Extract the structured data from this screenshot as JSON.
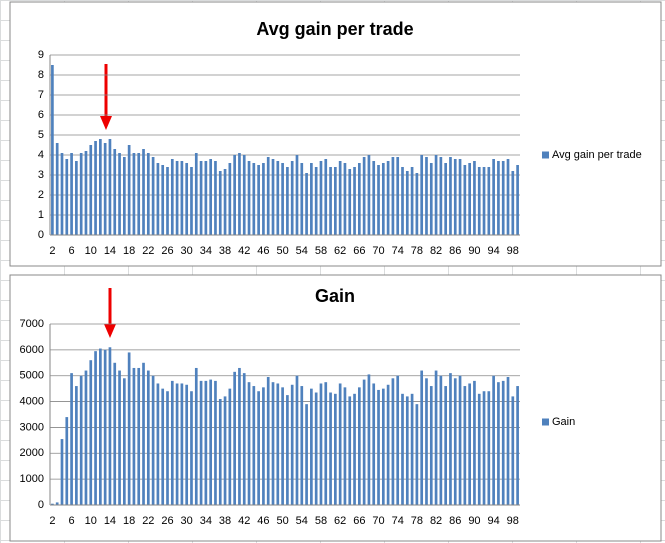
{
  "chart_data": [
    {
      "type": "bar",
      "title": "Avg gain per trade",
      "categories": [
        2,
        null,
        null,
        null,
        6,
        null,
        null,
        null,
        10,
        null,
        null,
        null,
        14,
        null,
        null,
        null,
        18,
        null,
        null,
        null,
        22,
        null,
        null,
        null,
        26,
        null,
        null,
        null,
        30,
        null,
        null,
        null,
        34,
        null,
        null,
        null,
        38,
        null,
        null,
        null,
        42,
        null,
        null,
        null,
        46,
        null,
        null,
        null,
        50,
        null,
        null,
        null,
        54,
        null,
        null,
        null,
        58,
        null,
        null,
        null,
        62,
        null,
        null,
        null,
        66,
        null,
        null,
        null,
        70,
        null,
        null,
        null,
        74,
        null,
        null,
        null,
        78,
        null,
        null,
        null,
        82,
        null,
        null,
        null,
        86,
        null,
        null,
        null,
        90,
        null,
        null,
        null,
        94,
        null,
        null,
        null,
        98,
        null
      ],
      "series": [
        {
          "name": "Avg gain per trade",
          "color": "#4f81bd",
          "values": [
            8.5,
            4.6,
            4.1,
            3.8,
            4.1,
            3.7,
            4.1,
            4.2,
            4.5,
            4.7,
            4.8,
            4.6,
            4.8,
            4.3,
            4.1,
            3.9,
            4.5,
            4.1,
            4.1,
            4.3,
            4.1,
            3.9,
            3.6,
            3.5,
            3.4,
            3.8,
            3.7,
            3.7,
            3.6,
            3.4,
            4.1,
            3.7,
            3.7,
            3.8,
            3.7,
            3.2,
            3.3,
            3.6,
            4.0,
            4.1,
            4.0,
            3.7,
            3.6,
            3.5,
            3.6,
            3.9,
            3.8,
            3.7,
            3.6,
            3.4,
            3.7,
            4.0,
            3.6,
            3.1,
            3.6,
            3.4,
            3.7,
            3.8,
            3.4,
            3.4,
            3.7,
            3.6,
            3.3,
            3.4,
            3.6,
            3.9,
            4.0,
            3.7,
            3.5,
            3.6,
            3.7,
            3.9,
            3.9,
            3.4,
            3.2,
            3.4,
            3.1,
            4.0,
            3.9,
            3.6,
            4.0,
            3.9,
            3.6,
            3.9,
            3.8,
            3.8,
            3.5,
            3.6,
            3.7,
            3.4,
            3.4,
            3.4,
            3.8,
            3.7,
            3.7,
            3.8,
            3.2,
            3.5
          ]
        }
      ],
      "ylim": [
        0,
        9
      ],
      "yticks": [
        0,
        1,
        2,
        3,
        4,
        5,
        6,
        7,
        8,
        9
      ],
      "grid": true,
      "legend": "right"
    },
    {
      "type": "bar",
      "title": "Gain",
      "categories": [
        2,
        null,
        null,
        null,
        6,
        null,
        null,
        null,
        10,
        null,
        null,
        null,
        14,
        null,
        null,
        null,
        18,
        null,
        null,
        null,
        22,
        null,
        null,
        null,
        26,
        null,
        null,
        null,
        30,
        null,
        null,
        null,
        34,
        null,
        null,
        null,
        38,
        null,
        null,
        null,
        42,
        null,
        null,
        null,
        46,
        null,
        null,
        null,
        50,
        null,
        null,
        null,
        54,
        null,
        null,
        null,
        58,
        null,
        null,
        null,
        62,
        null,
        null,
        null,
        66,
        null,
        null,
        null,
        70,
        null,
        null,
        null,
        74,
        null,
        null,
        null,
        78,
        null,
        null,
        null,
        82,
        null,
        null,
        null,
        86,
        null,
        null,
        null,
        90,
        null,
        null,
        null,
        94,
        null,
        null,
        null,
        98,
        null
      ],
      "series": [
        {
          "name": "Gain",
          "color": "#4f81bd",
          "values": [
            50,
            100,
            2550,
            3400,
            5100,
            4600,
            5000,
            5200,
            5600,
            5950,
            6050,
            6000,
            6100,
            5500,
            5200,
            4900,
            5900,
            5300,
            5300,
            5500,
            5200,
            5000,
            4700,
            4500,
            4400,
            4800,
            4700,
            4700,
            4650,
            4400,
            5300,
            4800,
            4800,
            4850,
            4800,
            4100,
            4200,
            4500,
            5150,
            5300,
            5100,
            4750,
            4600,
            4400,
            4550,
            4950,
            4750,
            4700,
            4550,
            4250,
            4650,
            5000,
            4600,
            3900,
            4500,
            4350,
            4700,
            4750,
            4350,
            4300,
            4700,
            4550,
            4200,
            4300,
            4550,
            4850,
            5050,
            4700,
            4450,
            4500,
            4650,
            4900,
            5000,
            4300,
            4200,
            4300,
            3900,
            5200,
            4900,
            4600,
            5200,
            5000,
            4600,
            5100,
            4900,
            5000,
            4600,
            4700,
            4800,
            4300,
            4400,
            4400,
            5000,
            4750,
            4800,
            4950,
            4200,
            4600
          ]
        }
      ],
      "ylim": [
        0,
        7000
      ],
      "yticks": [
        0,
        1000,
        2000,
        3000,
        4000,
        5000,
        6000,
        7000
      ],
      "grid": true,
      "legend": "right"
    }
  ]
}
